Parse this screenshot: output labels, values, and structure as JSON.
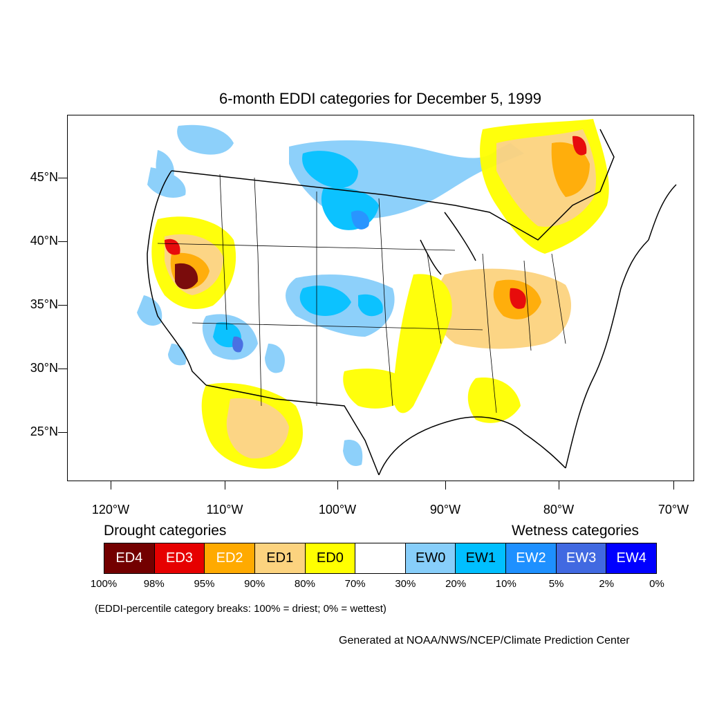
{
  "title": "6-month EDDI categories for December 5, 1999",
  "lat_labels": [
    "45°N",
    "40°N",
    "35°N",
    "30°N",
    "25°N"
  ],
  "lon_labels": [
    "120°W",
    "110°W",
    "100°W",
    "90°W",
    "80°W",
    "70°W"
  ],
  "legend": {
    "drought_heading": "Drought categories",
    "wetness_heading": "Wetness categories",
    "categories": [
      {
        "label": "ED4",
        "color": "#730000",
        "text_color": "#ffffff"
      },
      {
        "label": "ED3",
        "color": "#e60000",
        "text_color": "#ffffff"
      },
      {
        "label": "ED2",
        "color": "#ffaa00",
        "text_color": "#ffffff"
      },
      {
        "label": "ED1",
        "color": "#fcd37f",
        "text_color": "#000000"
      },
      {
        "label": "ED0",
        "color": "#ffff00",
        "text_color": "#000000"
      },
      {
        "label": "",
        "color": "#ffffff",
        "text_color": "#000000"
      },
      {
        "label": "EW0",
        "color": "#87cefa",
        "text_color": "#000000"
      },
      {
        "label": "EW1",
        "color": "#00bfff",
        "text_color": "#000000"
      },
      {
        "label": "EW2",
        "color": "#1e90ff",
        "text_color": "#ffffff"
      },
      {
        "label": "EW3",
        "color": "#4169e1",
        "text_color": "#ffffff"
      },
      {
        "label": "EW4",
        "color": "#0000ff",
        "text_color": "#ffffff"
      }
    ],
    "breaks": [
      "100%",
      "98%",
      "95%",
      "90%",
      "80%",
      "70%",
      "30%",
      "20%",
      "10%",
      "5%",
      "2%",
      "0%"
    ]
  },
  "note": "(EDDI-percentile category breaks: 100% = driest; 0% = wettest)",
  "credit": "Generated at NOAA/NWS/NCEP/Climate Prediction Center"
}
